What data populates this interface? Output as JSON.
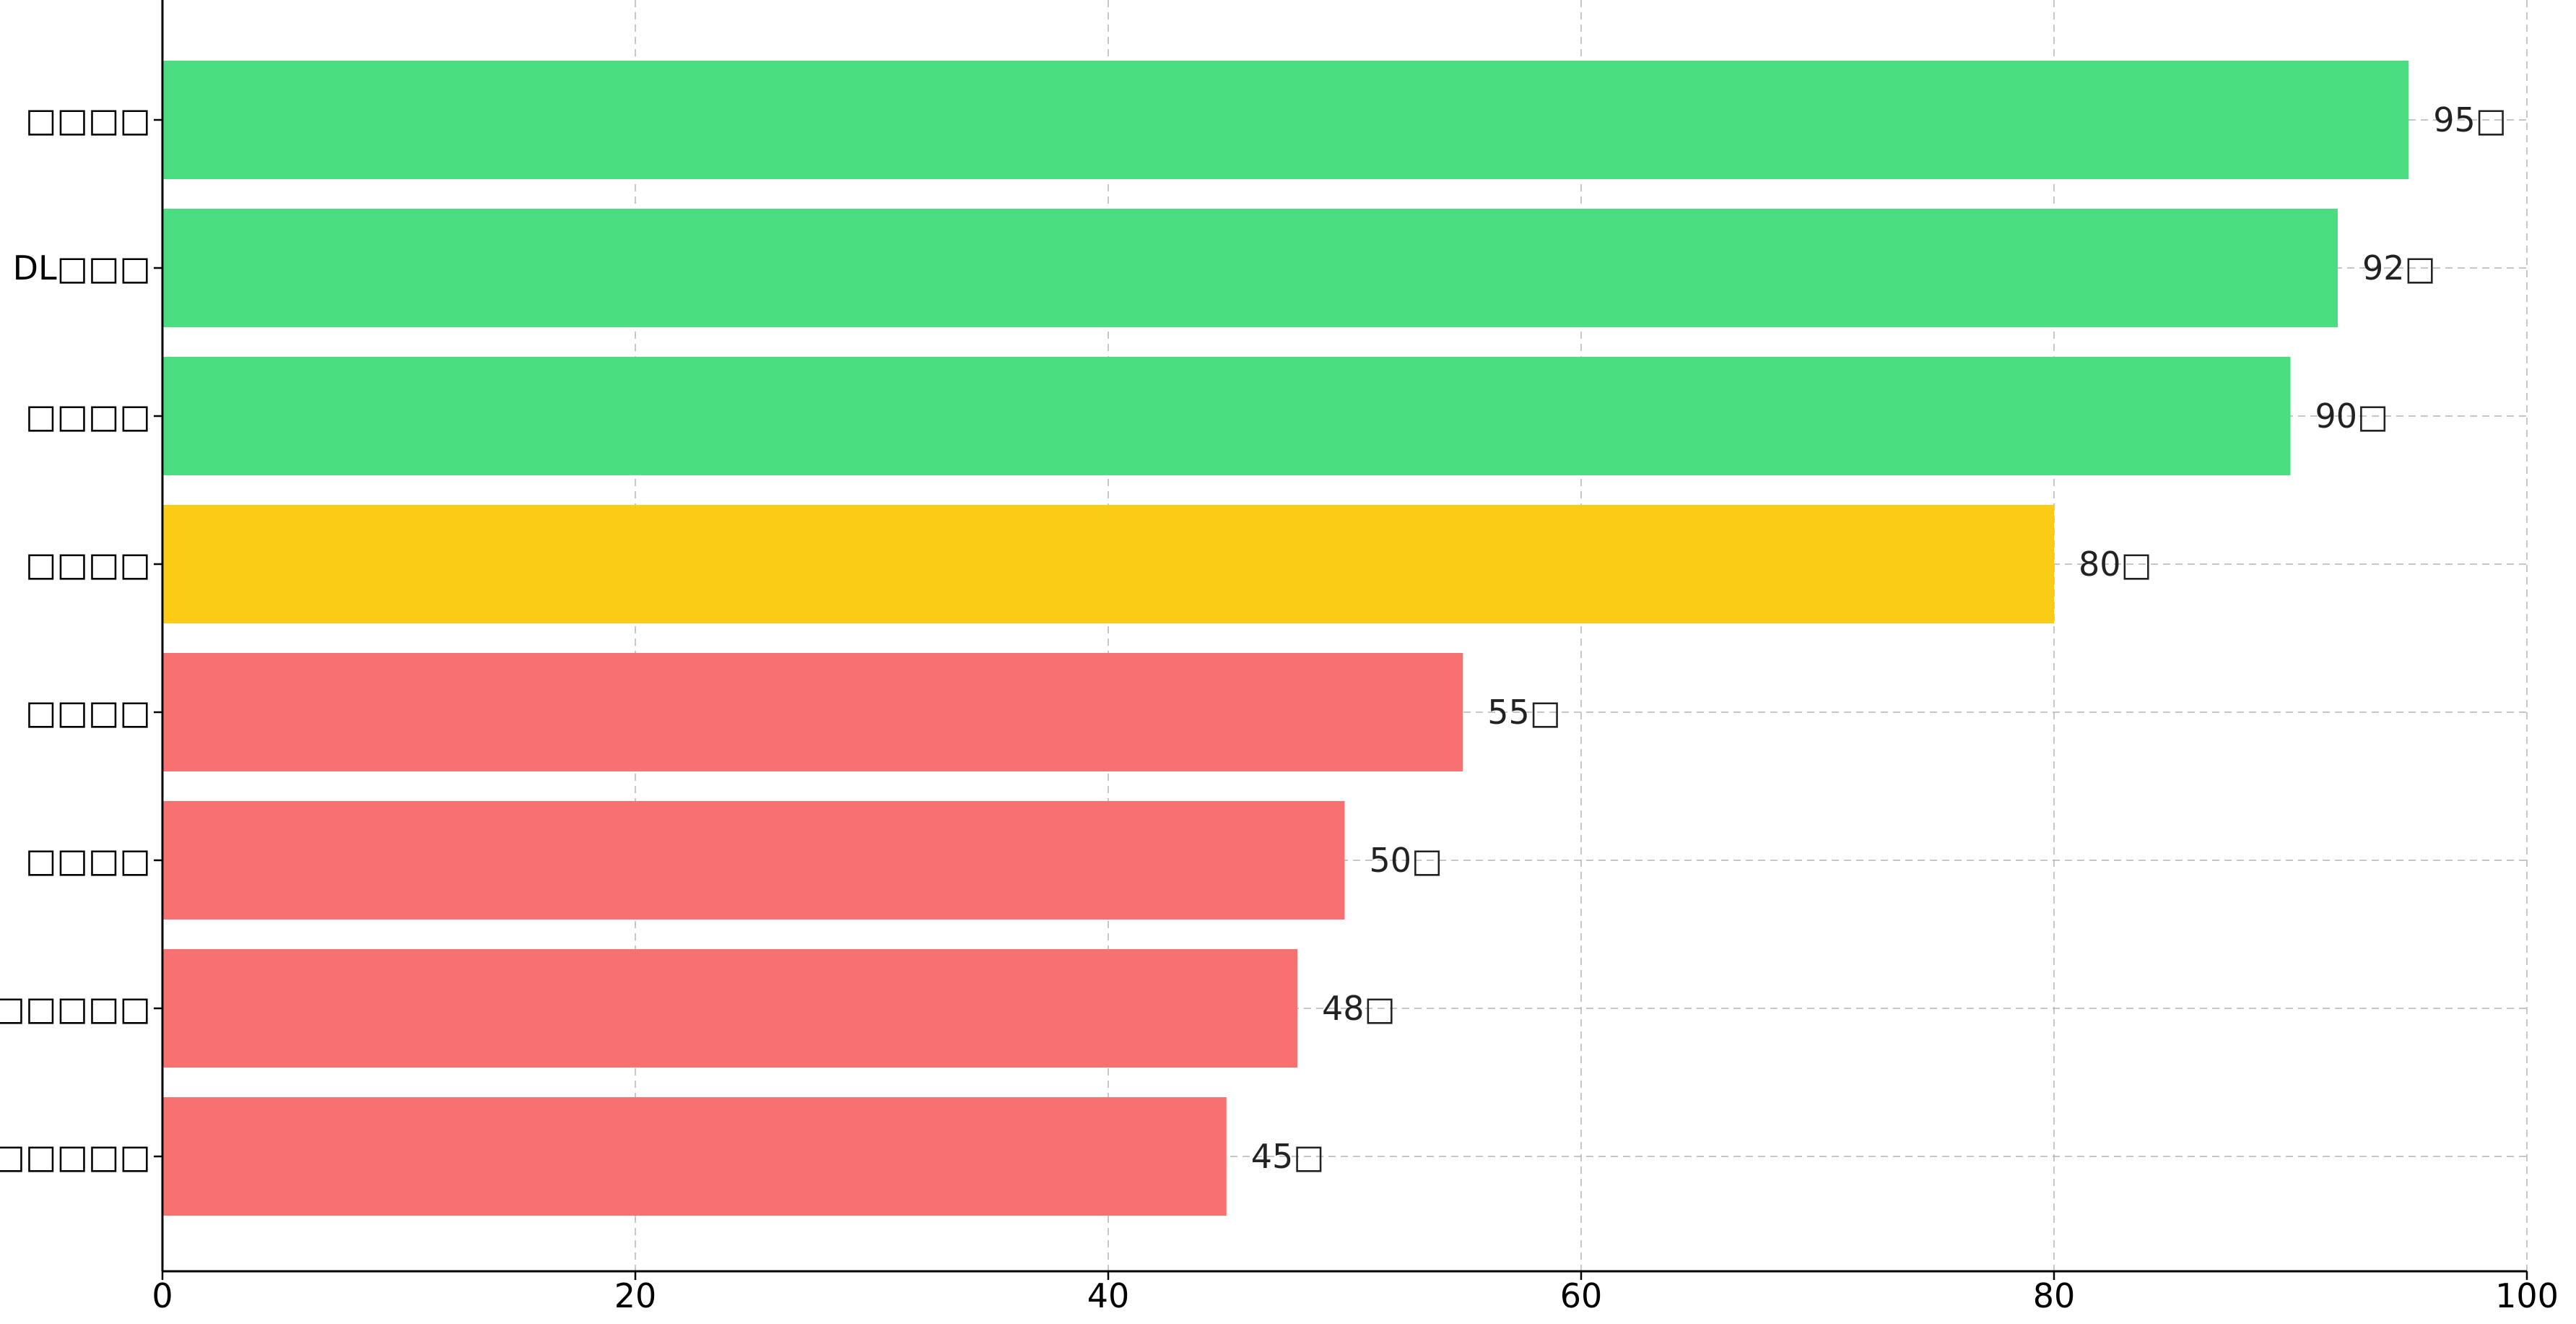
{
  "chart_data": {
    "type": "bar",
    "orientation": "horizontal",
    "categories": [
      "□□□□",
      "DL□□□",
      "□□□□",
      "□□□□",
      "□□□□",
      "□□□□",
      "□□□□□□",
      "□□□□□□"
    ],
    "values": [
      95,
      92,
      90,
      80,
      55,
      50,
      48,
      45
    ],
    "data_labels": [
      "95□",
      "92□",
      "90□",
      "80□",
      "55□",
      "50□",
      "48□",
      "45□"
    ],
    "bar_colors": [
      "#4ade80",
      "#4ade80",
      "#4ade80",
      "#facc15",
      "#f87171",
      "#f87171",
      "#f87171",
      "#f87171"
    ],
    "title": "",
    "xlabel": "",
    "ylabel": "",
    "xlim": [
      0,
      100
    ],
    "xticks": [
      0,
      20,
      40,
      60,
      80,
      100
    ],
    "grid": true,
    "legend": "none"
  }
}
